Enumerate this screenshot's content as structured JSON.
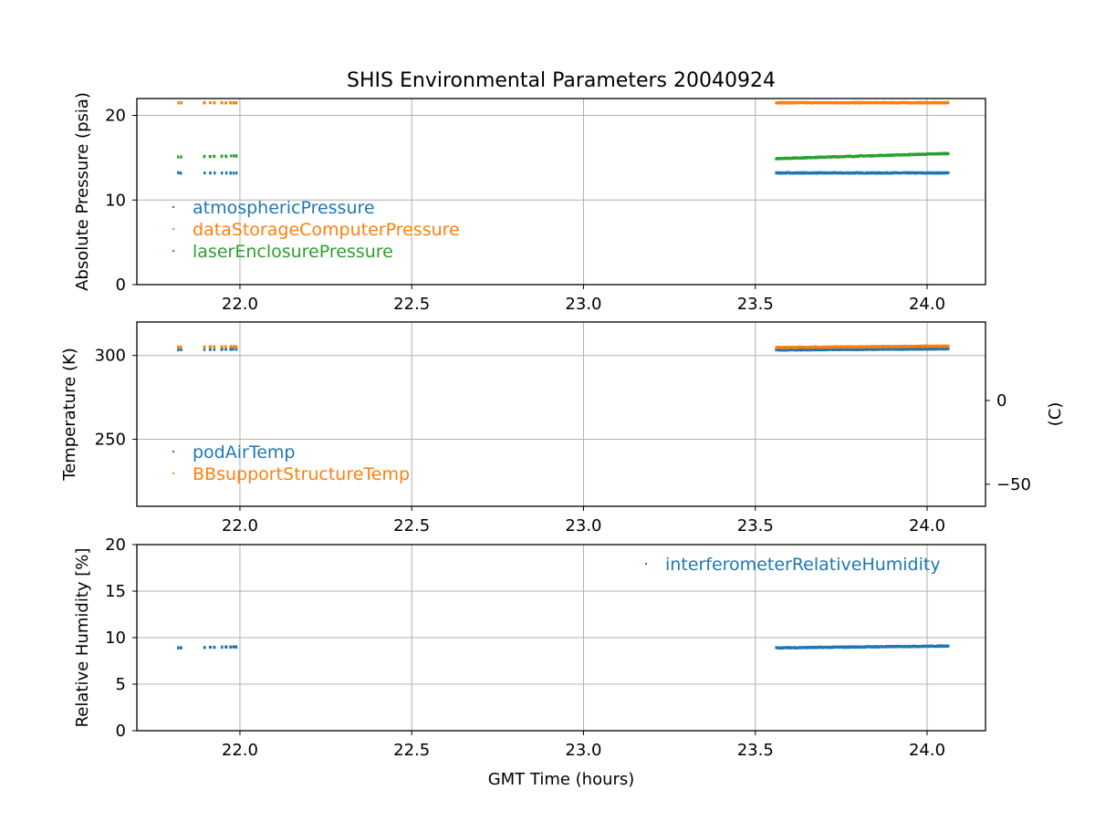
{
  "figure": {
    "title": "SHIS Environmental Parameters 20040924",
    "xlabel": "GMT Time (hours)"
  },
  "colors": {
    "blue": "#1f77b4",
    "orange": "#ff7f0e",
    "green": "#2ca02c"
  },
  "chart_data": [
    {
      "type": "scatter",
      "ylabel": "Absolute Pressure (psia)",
      "xlim": [
        21.7,
        24.17
      ],
      "ylim": [
        0,
        22
      ],
      "xticks": [
        "22.0",
        "22.5",
        "23.0",
        "23.5",
        "24.0"
      ],
      "xtick_values": [
        22.0,
        22.5,
        23.0,
        23.5,
        24.0
      ],
      "yticks": [
        "0",
        "10",
        "20"
      ],
      "ytick_values": [
        0,
        10,
        20
      ],
      "grid": true,
      "legend": "lower-left",
      "series": [
        {
          "name": "atmosphericPressure",
          "color": "#1f77b4",
          "segments": [
            {
              "x": [
                21.82,
                21.99
              ],
              "y": [
                13.2,
                13.2
              ]
            },
            {
              "x": [
                23.56,
                24.06
              ],
              "y": [
                13.2,
                13.2
              ]
            }
          ]
        },
        {
          "name": "dataStorageComputerPressure",
          "color": "#ff7f0e",
          "segments": [
            {
              "x": [
                21.82,
                21.99
              ],
              "y": [
                21.5,
                21.5
              ]
            },
            {
              "x": [
                23.56,
                24.06
              ],
              "y": [
                21.5,
                21.5
              ]
            }
          ]
        },
        {
          "name": "laserEnclosurePressure",
          "color": "#2ca02c",
          "segments": [
            {
              "x": [
                21.82,
                21.99
              ],
              "y": [
                15.1,
                15.2
              ]
            },
            {
              "x": [
                23.56,
                24.06
              ],
              "y": [
                14.9,
                15.5
              ]
            }
          ]
        }
      ]
    },
    {
      "type": "scatter",
      "ylabel": "Temperature (K)",
      "ylabel_right": "(C)",
      "xlim": [
        21.7,
        24.17
      ],
      "ylim": [
        210,
        320
      ],
      "xticks": [
        "22.0",
        "22.5",
        "23.0",
        "23.5",
        "24.0"
      ],
      "xtick_values": [
        22.0,
        22.5,
        23.0,
        23.5,
        24.0
      ],
      "yticks": [
        "250",
        "300"
      ],
      "ytick_values": [
        250,
        300
      ],
      "yticks_right": [
        "0",
        "−50"
      ],
      "ytick_right_values": [
        273.15,
        223.15
      ],
      "grid": true,
      "legend": "lower-left",
      "series": [
        {
          "name": "podAirTemp",
          "color": "#1f77b4",
          "segments": [
            {
              "x": [
                21.82,
                21.99
              ],
              "y": [
                303.5,
                303.8
              ]
            },
            {
              "x": [
                23.56,
                24.06
              ],
              "y": [
                303.3,
                304.0
              ]
            }
          ]
        },
        {
          "name": "BBsupportStructureTemp",
          "color": "#ff7f0e",
          "segments": [
            {
              "x": [
                21.82,
                21.99
              ],
              "y": [
                305.0,
                305.3
              ]
            },
            {
              "x": [
                23.56,
                24.06
              ],
              "y": [
                304.8,
                305.6
              ]
            }
          ]
        }
      ]
    },
    {
      "type": "scatter",
      "ylabel": "Relative Humidity [%]",
      "xlim": [
        21.7,
        24.17
      ],
      "ylim": [
        0,
        20
      ],
      "xticks": [
        "22.0",
        "22.5",
        "23.0",
        "23.5",
        "24.0"
      ],
      "xtick_values": [
        22.0,
        22.5,
        23.0,
        23.5,
        24.0
      ],
      "yticks": [
        "0",
        "5",
        "10",
        "15",
        "20"
      ],
      "ytick_values": [
        0,
        5,
        10,
        15,
        20
      ],
      "grid": true,
      "legend": "upper-right",
      "series": [
        {
          "name": "interferometerRelativeHumidity",
          "color": "#1f77b4",
          "segments": [
            {
              "x": [
                21.82,
                21.99
              ],
              "y": [
                8.9,
                9.0
              ]
            },
            {
              "x": [
                23.56,
                24.06
              ],
              "y": [
                8.9,
                9.1
              ]
            }
          ]
        }
      ]
    }
  ]
}
